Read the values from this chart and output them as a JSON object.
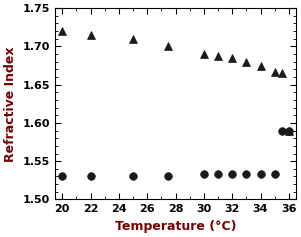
{
  "tri_x": [
    20,
    22,
    25,
    27.5,
    30,
    31,
    32,
    33,
    34,
    35,
    35.5,
    36
  ],
  "tri_y": [
    1.72,
    1.715,
    1.71,
    1.7,
    1.69,
    1.688,
    1.685,
    1.68,
    1.675,
    1.667,
    1.665,
    1.59
  ],
  "circ_x": [
    20,
    22,
    25,
    27.5,
    30,
    31,
    32,
    33,
    34,
    35,
    35.5,
    36
  ],
  "circ_y": [
    1.53,
    1.53,
    1.53,
    1.53,
    1.533,
    1.533,
    1.533,
    1.533,
    1.533,
    1.533,
    1.59,
    1.59
  ],
  "xlabel": "Temperature (°C)",
  "ylabel": "Refractive Index",
  "xlim": [
    19.5,
    36.5
  ],
  "ylim": [
    1.5,
    1.75
  ],
  "xticks": [
    20,
    22,
    24,
    26,
    28,
    30,
    32,
    34,
    36
  ],
  "yticks": [
    1.5,
    1.55,
    1.6,
    1.65,
    1.7,
    1.75
  ],
  "marker_color": "#1a1a1a",
  "bg_color": "white",
  "xlabel_fontsize": 9,
  "ylabel_fontsize": 9,
  "tick_fontsize": 8,
  "label_color": "#7a0000"
}
